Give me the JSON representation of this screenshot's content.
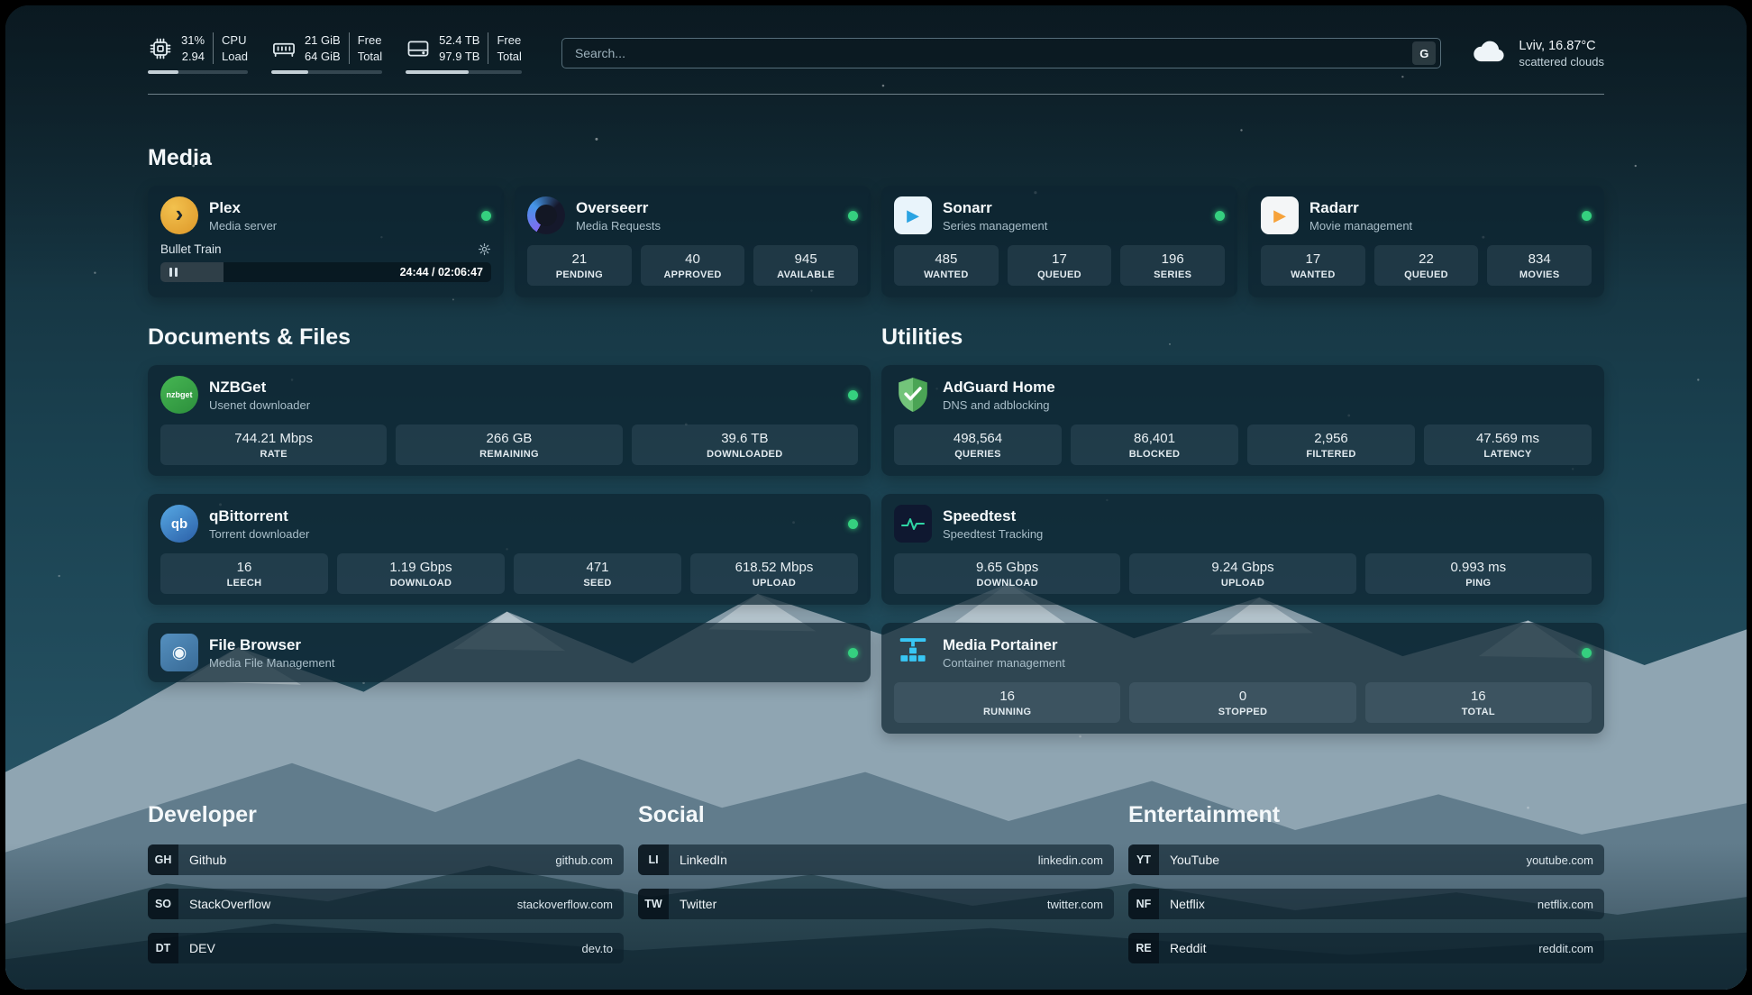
{
  "header": {
    "metrics": [
      {
        "name": "cpu",
        "icon": "cpu-chip-icon",
        "line1": "31%",
        "line2": "2.94",
        "label1": "CPU",
        "label2": "Load",
        "progress": 31
      },
      {
        "name": "memory",
        "icon": "memory-icon",
        "line1": "21 GiB",
        "line2": "64 GiB",
        "label1": "Free",
        "label2": "Total",
        "progress": 33
      },
      {
        "name": "storage",
        "icon": "hard-drive-icon",
        "line1": "52.4 TB",
        "line2": "97.9 TB",
        "label1": "Free",
        "label2": "Total",
        "progress": 54
      }
    ],
    "search": {
      "placeholder": "Search...",
      "engine": "G"
    },
    "weather": {
      "icon": "cloud-icon",
      "location": "Lviv, 16.87°C",
      "condition": "scattered clouds"
    }
  },
  "sections": {
    "media": {
      "title": "Media",
      "plex": {
        "name": "Plex",
        "subtitle": "Media server",
        "now_playing": "Bullet Train",
        "time": "24:44 / 02:06:47",
        "progress": 19
      },
      "apps": [
        {
          "name": "Overseerr",
          "subtitle": "Media Requests",
          "stats": [
            {
              "value": "21",
              "label": "PENDING"
            },
            {
              "value": "40",
              "label": "APPROVED"
            },
            {
              "value": "945",
              "label": "AVAILABLE"
            }
          ]
        },
        {
          "name": "Sonarr",
          "subtitle": "Series management",
          "stats": [
            {
              "value": "485",
              "label": "WANTED"
            },
            {
              "value": "17",
              "label": "QUEUED"
            },
            {
              "value": "196",
              "label": "SERIES"
            }
          ]
        },
        {
          "name": "Radarr",
          "subtitle": "Movie management",
          "stats": [
            {
              "value": "17",
              "label": "WANTED"
            },
            {
              "value": "22",
              "label": "QUEUED"
            },
            {
              "value": "834",
              "label": "MOVIES"
            }
          ]
        }
      ]
    },
    "documents": {
      "title": "Documents & Files",
      "apps": [
        {
          "name": "NZBGet",
          "subtitle": "Usenet downloader",
          "stats": [
            {
              "value": "744.21 Mbps",
              "label": "RATE"
            },
            {
              "value": "266 GB",
              "label": "REMAINING"
            },
            {
              "value": "39.6 TB",
              "label": "DOWNLOADED"
            }
          ]
        },
        {
          "name": "qBittorrent",
          "subtitle": "Torrent downloader",
          "stats": [
            {
              "value": "16",
              "label": "LEECH"
            },
            {
              "value": "1.19 Gbps",
              "label": "DOWNLOAD"
            },
            {
              "value": "471",
              "label": "SEED"
            },
            {
              "value": "618.52 Mbps",
              "label": "UPLOAD"
            }
          ]
        },
        {
          "name": "File Browser",
          "subtitle": "Media File Management",
          "stats": []
        }
      ]
    },
    "utilities": {
      "title": "Utilities",
      "apps": [
        {
          "name": "AdGuard Home",
          "subtitle": "DNS and adblocking",
          "stats": [
            {
              "value": "498,564",
              "label": "QUERIES"
            },
            {
              "value": "86,401",
              "label": "BLOCKED"
            },
            {
              "value": "2,956",
              "label": "FILTERED"
            },
            {
              "value": "47.569 ms",
              "label": "LATENCY"
            }
          ]
        },
        {
          "name": "Speedtest",
          "subtitle": "Speedtest Tracking",
          "stats": [
            {
              "value": "9.65 Gbps",
              "label": "DOWNLOAD"
            },
            {
              "value": "9.24 Gbps",
              "label": "UPLOAD"
            },
            {
              "value": "0.993 ms",
              "label": "PING"
            }
          ]
        },
        {
          "name": "Media Portainer",
          "subtitle": "Container management",
          "stats": [
            {
              "value": "16",
              "label": "RUNNING"
            },
            {
              "value": "0",
              "label": "STOPPED"
            },
            {
              "value": "16",
              "label": "TOTAL"
            }
          ]
        }
      ]
    }
  },
  "bookmarks": [
    {
      "title": "Developer",
      "items": [
        {
          "abbr": "GH",
          "name": "Github",
          "url": "github.com"
        },
        {
          "abbr": "SO",
          "name": "StackOverflow",
          "url": "stackoverflow.com"
        },
        {
          "abbr": "DT",
          "name": "DEV",
          "url": "dev.to"
        }
      ]
    },
    {
      "title": "Social",
      "items": [
        {
          "abbr": "LI",
          "name": "LinkedIn",
          "url": "linkedin.com"
        },
        {
          "abbr": "TW",
          "name": "Twitter",
          "url": "twitter.com"
        }
      ]
    },
    {
      "title": "Entertainment",
      "items": [
        {
          "abbr": "YT",
          "name": "YouTube",
          "url": "youtube.com"
        },
        {
          "abbr": "NF",
          "name": "Netflix",
          "url": "netflix.com"
        },
        {
          "abbr": "RE",
          "name": "Reddit",
          "url": "reddit.com"
        }
      ]
    }
  ],
  "icons": {
    "plex_glyph": "›",
    "sonarr_glyph": "▶",
    "radarr_glyph": "▶",
    "nzbget_text": "nzbget",
    "qbittorrent_text": "qb",
    "filebrowser_glyph": "◉"
  },
  "colors": {
    "status_online": "#35d07f",
    "plex_amber": "#e5a00d",
    "sonarr_blue": "#2aa3e2",
    "radarr_amber": "#f6a23a",
    "nzbget_green": "#3aa84b",
    "qbittorrent_blue": "#2b5fa7",
    "adguard_green": "#5cb765",
    "speedtest_pulse": "#2fd6a5",
    "portainer_cyan": "#38c6f4"
  }
}
